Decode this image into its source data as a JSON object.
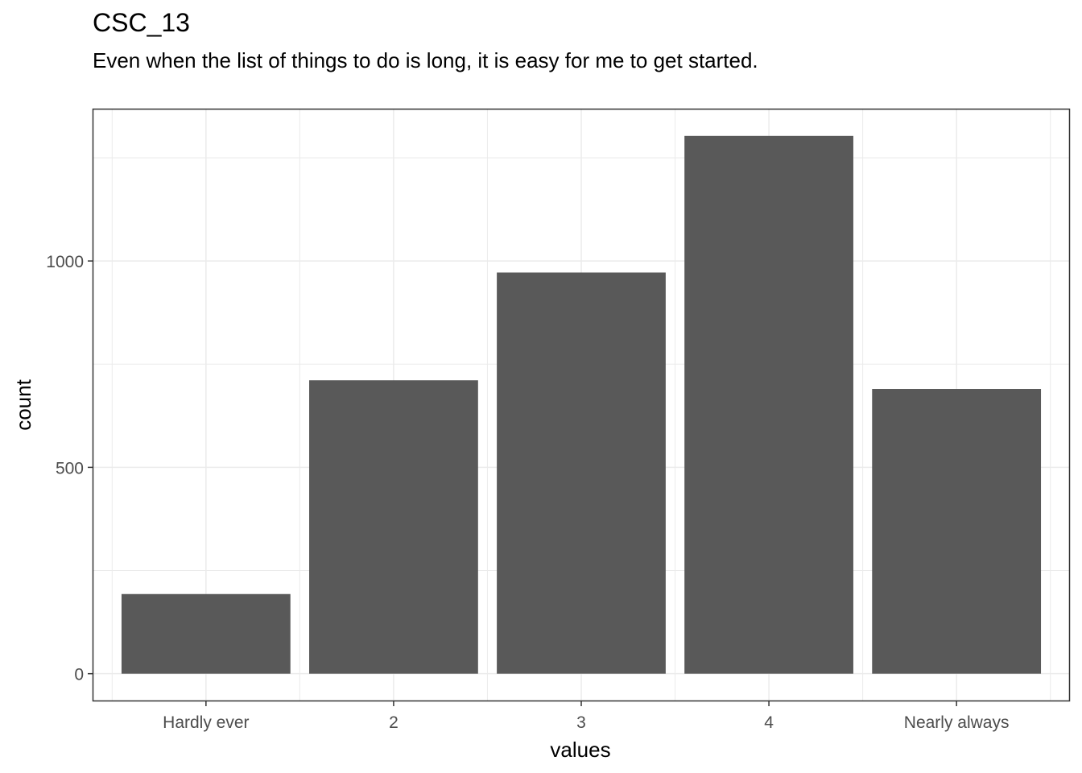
{
  "chart_data": {
    "type": "bar",
    "title": "CSC_13",
    "subtitle": "Even when the list of things to do is long, it is easy for me to get started.",
    "xlabel": "values",
    "ylabel": "count",
    "categories": [
      "Hardly ever",
      "2",
      "3",
      "4",
      "Nearly always"
    ],
    "values": [
      193,
      711,
      972,
      1303,
      690
    ],
    "ylim": [
      -65,
      1367
    ],
    "yticks": [
      0,
      500,
      1000
    ],
    "ytick_labels": [
      "0",
      "500",
      "1000"
    ],
    "grid": true,
    "bar_color": "#595959",
    "grid_color": "#ebebeb",
    "border_color": "#333333"
  }
}
